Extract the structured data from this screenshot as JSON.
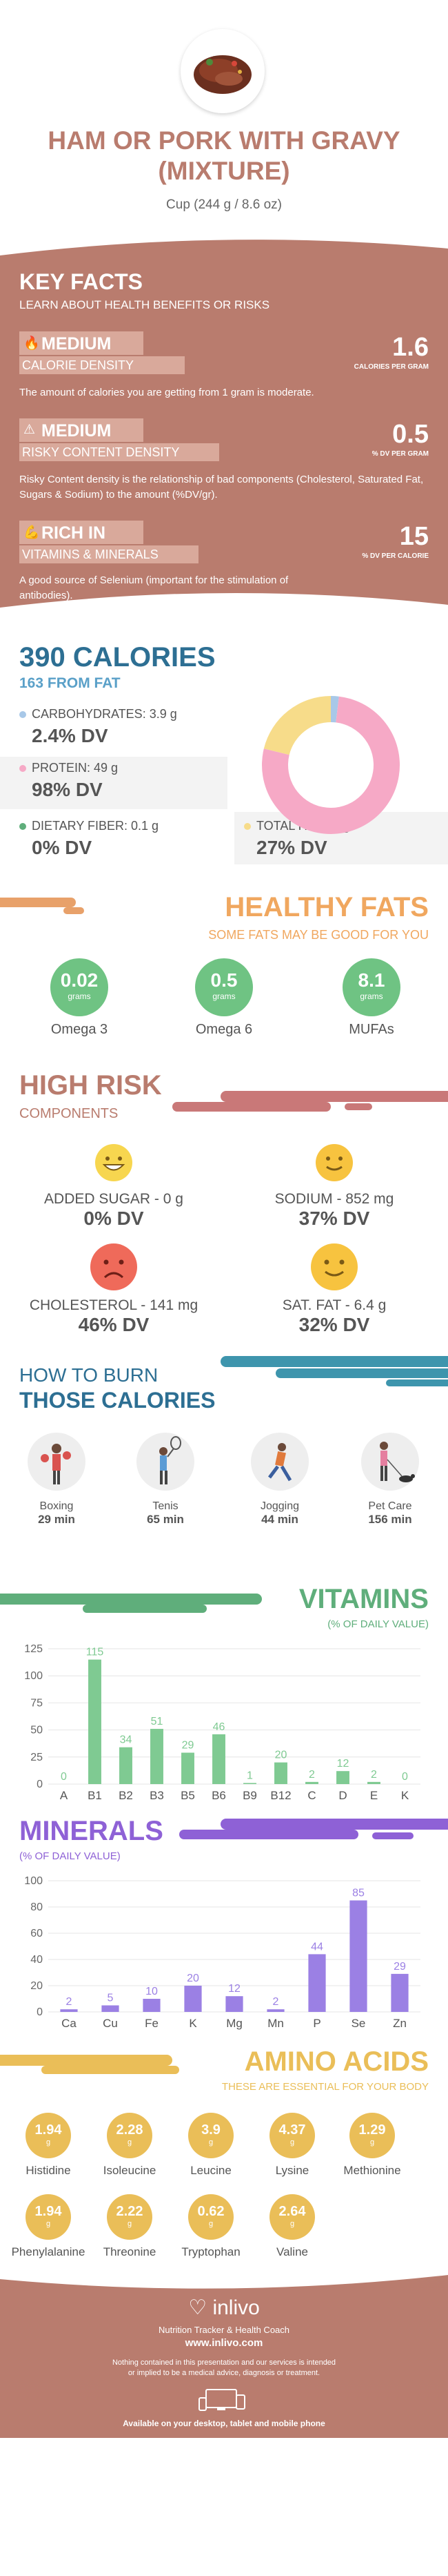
{
  "header": {
    "title": "HAM OR PORK WITH GRAVY (MIXTURE)",
    "serving": "Cup (244 g / 8.6 oz)"
  },
  "key_facts": {
    "title": "KEY FACTS",
    "subtitle": "LEARN ABOUT HEALTH BENEFITS OR RISKS",
    "items": [
      {
        "level": "MEDIUM",
        "label": "CALORIE DENSITY",
        "value": "1.6",
        "unit": "CALORIES PER GRAM",
        "desc": "The amount of calories you are getting from 1 gram is moderate."
      },
      {
        "level": "MEDIUM",
        "label": "RISKY CONTENT DENSITY",
        "value": "0.5",
        "unit": "% DV PER GRAM",
        "desc": "Risky Content density is the relationship of bad components (Cholesterol, Saturated Fat, Sugars & Sodium) to the amount (%DV/gr)."
      },
      {
        "level": "RICH  IN",
        "label": "VITAMINS & MINERALS",
        "value": "15",
        "unit": "% DV PER CALORIE",
        "desc": "A good source of Selenium (important for the stimulation of antibodies)."
      }
    ]
  },
  "calories": {
    "title": "390 CALORIES",
    "from_fat": "163 FROM FAT",
    "macros": [
      {
        "label": "CARBOHYDRATES: 3.9 g",
        "dv": "2.4% DV",
        "color": "#a8c8e8",
        "pct": 2.4
      },
      {
        "label": "PROTEIN: 49 g",
        "dv": "98% DV",
        "color": "#f6a9c6",
        "pct": 98
      },
      {
        "label": "DIETARY FIBER: 0.1 g",
        "dv": "0% DV",
        "color": "#5fae7b",
        "pct": 0
      },
      {
        "label": "TOTAL FAT: 18 g",
        "dv": "27% DV",
        "color": "#f7dc8a",
        "pct": 27
      }
    ]
  },
  "healthy_fats": {
    "title": "HEALTHY FATS",
    "subtitle": "SOME FATS MAY BE GOOD FOR YOU",
    "items": [
      {
        "value": "0.02",
        "unit": "grams",
        "name": "Omega 3"
      },
      {
        "value": "0.5",
        "unit": "grams",
        "name": "Omega 6"
      },
      {
        "value": "8.1",
        "unit": "grams",
        "name": "MUFAs"
      }
    ]
  },
  "high_risk": {
    "title": "HIGH RISK",
    "subtitle": "COMPONENTS",
    "items": [
      {
        "label": "ADDED SUGAR - 0 g",
        "dv": "0% DV",
        "face": "grin-face-icon",
        "color": "#f7d64f"
      },
      {
        "label": "SODIUM - 852 mg",
        "dv": "37% DV",
        "face": "smile-face-icon",
        "color": "#f7c33f"
      },
      {
        "label": "CHOLESTEROL - 141 mg",
        "dv": "46% DV",
        "face": "sad-face-icon",
        "color": "#ef6a5a"
      },
      {
        "label": "SAT. FAT - 6.4 g",
        "dv": "32% DV",
        "face": "smile-face-icon",
        "color": "#f7c33f"
      }
    ]
  },
  "burn": {
    "title1": "HOW TO BURN",
    "title2": "THOSE CALORIES",
    "items": [
      {
        "name": "Boxing",
        "time": "29 min",
        "icon": "boxing-icon"
      },
      {
        "name": "Tenis",
        "time": "65 min",
        "icon": "tennis-icon"
      },
      {
        "name": "Jogging",
        "time": "44 min",
        "icon": "jogging-icon"
      },
      {
        "name": "Pet Care",
        "time": "156 min",
        "icon": "pet-care-icon"
      }
    ]
  },
  "vitamins": {
    "title": "VITAMINS",
    "subtitle": "(% OF DAILY VALUE)"
  },
  "minerals": {
    "title": "MINERALS",
    "subtitle": "(% OF DAILY VALUE)"
  },
  "chart_data": [
    {
      "type": "bar",
      "categories": [
        "A",
        "B1",
        "B2",
        "B3",
        "B5",
        "B6",
        "B9",
        "B12",
        "C",
        "D",
        "E",
        "K"
      ],
      "values": [
        0,
        115,
        34,
        51,
        29,
        46,
        1,
        20,
        2,
        12,
        2,
        0
      ],
      "yticks": [
        0,
        25,
        50,
        75,
        100,
        125
      ],
      "ylim": [
        0,
        125
      ],
      "color": "#7fca92"
    },
    {
      "type": "bar",
      "categories": [
        "Ca",
        "Cu",
        "Fe",
        "K",
        "Mg",
        "Mn",
        "P",
        "Se",
        "Zn"
      ],
      "values": [
        2,
        5,
        10,
        20,
        12,
        2,
        44,
        85,
        29
      ],
      "yticks": [
        0,
        20,
        40,
        60,
        80,
        100
      ],
      "ylim": [
        0,
        100
      ],
      "color": "#9b80e4"
    }
  ],
  "amino": {
    "title": "AMINO ACIDS",
    "subtitle": "THESE ARE ESSENTIAL FOR YOUR BODY",
    "items": [
      {
        "value": "1.94",
        "unit": "g",
        "name": "Histidine"
      },
      {
        "value": "2.28",
        "unit": "g",
        "name": "Isoleucine"
      },
      {
        "value": "3.9",
        "unit": "g",
        "name": "Leucine"
      },
      {
        "value": "4.37",
        "unit": "g",
        "name": "Lysine"
      },
      {
        "value": "1.29",
        "unit": "g",
        "name": "Methionine"
      },
      {
        "value": "1.94",
        "unit": "g",
        "name": "Phenylalanine"
      },
      {
        "value": "2.22",
        "unit": "g",
        "name": "Threonine"
      },
      {
        "value": "0.62",
        "unit": "g",
        "name": "Tryptophan"
      },
      {
        "value": "2.64",
        "unit": "g",
        "name": "Valine"
      }
    ]
  },
  "footer": {
    "brand": "inlivo",
    "tagline": "Nutrition Tracker & Health Coach",
    "url": "www.inlivo.com",
    "disclaimer": "Nothing contained in this presentation and our services is intended or implied to be a medical advice, diagnosis or treatment.",
    "devices": "Available on your desktop, tablet and mobile phone"
  }
}
